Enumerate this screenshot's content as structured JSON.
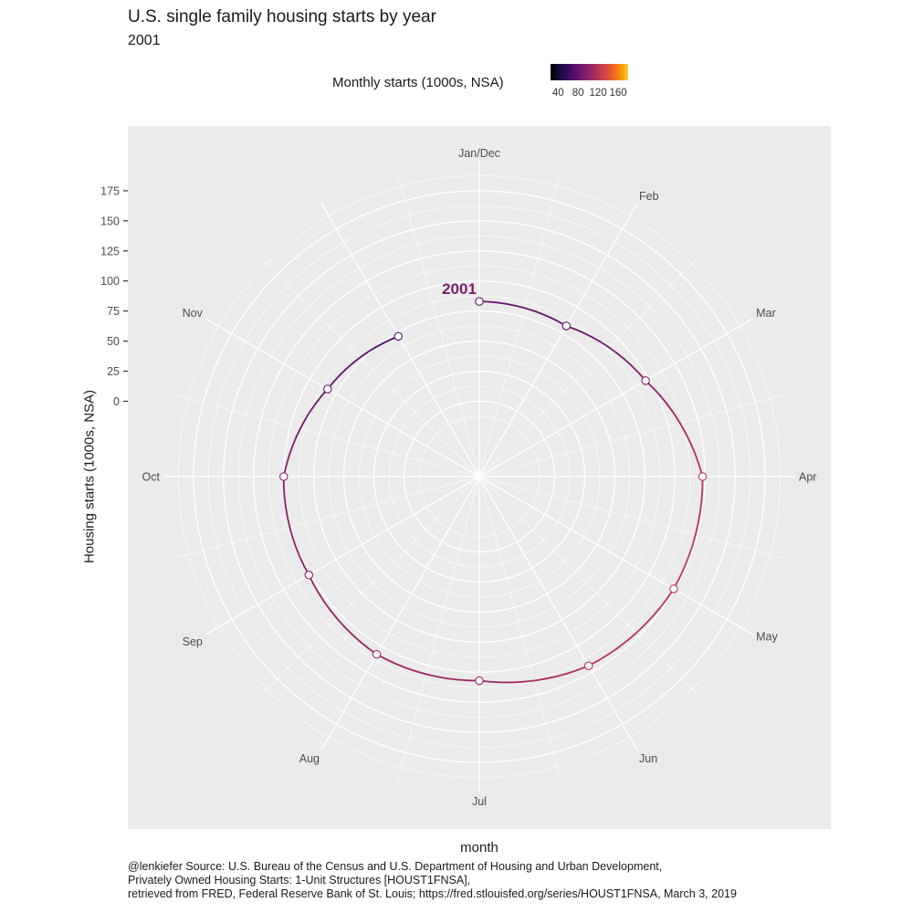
{
  "title": "U.S. single family housing starts by year",
  "subtitle": "2001",
  "legend": {
    "title": "Monthly starts (1000s, NSA)",
    "ticks": [
      "40",
      "80",
      "120",
      "160"
    ],
    "tick_values": [
      40,
      80,
      120,
      160
    ],
    "range": [
      25,
      180
    ],
    "colormap": "inferno"
  },
  "axes": {
    "xlabel": "month",
    "ylabel": "Housing starts (1000s, NSA)"
  },
  "caption": {
    "line1": "@lenkiefer Source: U.S. Bureau of the Census and U.S. Department of Housing and Urban Development,",
    "line2": "Privately Owned Housing Starts: 1-Unit Structures [HOUST1FNSA],",
    "line3": "retrieved from FRED, Federal Reserve Bank of St. Louis; https://fred.stlouisfed.org/series/HOUST1FNSA, March 3, 2019"
  },
  "colors": {
    "panel_bg": "#ebebeb",
    "grid": "#ffffff",
    "point_fill": "#ffffff",
    "label_color": "#7b1e6e"
  },
  "chart_data": {
    "type": "line",
    "coord": "polar",
    "title": "U.S. single family housing starts by year",
    "subtitle": "2001",
    "xlabel": "month",
    "ylabel": "Housing starts (1000s, NSA)",
    "theta_labels": [
      "Jan/Dec",
      "Feb",
      "Mar",
      "Apr",
      "May",
      "Jun",
      "Jul",
      "Aug",
      "Sep",
      "Oct",
      "Nov"
    ],
    "ylim": [
      -30,
      200
    ],
    "y_ticks": [
      0,
      25,
      50,
      75,
      100,
      125,
      150,
      175
    ],
    "series": [
      {
        "name": "2001",
        "x": [
          1,
          2,
          3,
          4,
          5,
          6,
          7,
          8,
          9,
          10,
          11,
          12
        ],
        "y": [
          83,
          82,
          97,
          123,
          124,
          119,
          107,
          108,
          101,
          100,
          83,
          72
        ]
      }
    ]
  }
}
